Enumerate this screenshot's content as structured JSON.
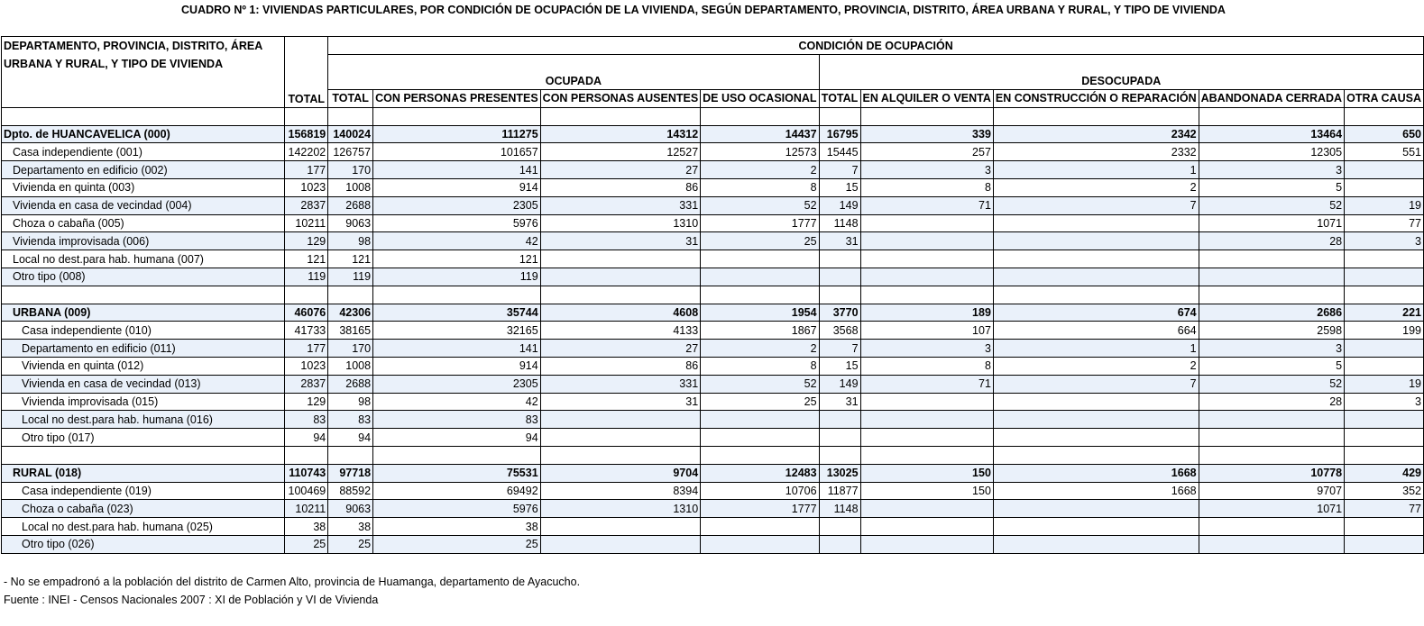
{
  "title": "CUADRO Nº 1: VIVIENDAS PARTICULARES, POR CONDICIÓN DE OCUPACIÓN DE LA VIVIENDA, SEGÚN DEPARTAMENTO, PROVINCIA, DISTRITO, ÁREA URBANA Y RURAL, Y TIPO DE VIVIENDA",
  "table": {
    "header": {
      "row_label": "DEPARTAMENTO, PROVINCIA, DISTRITO, ÁREA URBANA Y RURAL, Y TIPO DE VIVIENDA",
      "condition": "CONDICIÓN DE OCUPACIÓN",
      "occupied": "OCUPADA",
      "unoccupied": "DESOCUPADA",
      "columns": [
        "TOTAL",
        "TOTAL",
        "CON PERSONAS PRESENTES",
        "CON PERSONAS AUSENTES",
        "DE USO OCASIONAL",
        "TOTAL",
        "EN ALQUILER O VENTA",
        "EN CONSTRUCCIÓN O REPARACIÓN",
        "ABANDONADA CERRADA",
        "OTRA CAUSA"
      ]
    },
    "groups": [
      {
        "rows": [
          {
            "label": "Dpto. de HUANCAVELICA (000)",
            "values": [
              156819,
              140024,
              111275,
              14312,
              14437,
              16795,
              339,
              2342,
              13464,
              650
            ]
          },
          {
            "label": "Casa independiente (001)",
            "values": [
              142202,
              126757,
              101657,
              12527,
              12573,
              15445,
              257,
              2332,
              12305,
              551
            ]
          },
          {
            "label": "Departamento en edificio (002)",
            "values": [
              177,
              170,
              141,
              27,
              2,
              7,
              3,
              1,
              3,
              null
            ]
          },
          {
            "label": "Vivienda en quinta (003)",
            "values": [
              1023,
              1008,
              914,
              86,
              8,
              15,
              8,
              2,
              5,
              null
            ]
          },
          {
            "label": "Vivienda en casa de vecindad (004)",
            "values": [
              2837,
              2688,
              2305,
              331,
              52,
              149,
              71,
              7,
              52,
              19
            ]
          },
          {
            "label": "Choza o cabaña (005)",
            "values": [
              10211,
              9063,
              5976,
              1310,
              1777,
              1148,
              null,
              null,
              1071,
              77
            ]
          },
          {
            "label": "Vivienda improvisada (006)",
            "values": [
              129,
              98,
              42,
              31,
              25,
              31,
              null,
              null,
              28,
              3
            ]
          },
          {
            "label": "Local no dest.para hab. humana (007)",
            "values": [
              121,
              121,
              121,
              null,
              null,
              null,
              null,
              null,
              null,
              null
            ]
          },
          {
            "label": "Otro tipo (008)",
            "values": [
              119,
              119,
              119,
              null,
              null,
              null,
              null,
              null,
              null,
              null
            ]
          }
        ]
      },
      {
        "rows": [
          {
            "label": "URBANA (009)",
            "values": [
              46076,
              42306,
              35744,
              4608,
              1954,
              3770,
              189,
              674,
              2686,
              221
            ]
          },
          {
            "label": "Casa independiente (010)",
            "values": [
              41733,
              38165,
              32165,
              4133,
              1867,
              3568,
              107,
              664,
              2598,
              199
            ]
          },
          {
            "label": "Departamento en edificio (011)",
            "values": [
              177,
              170,
              141,
              27,
              2,
              7,
              3,
              1,
              3,
              null
            ]
          },
          {
            "label": "Vivienda en quinta (012)",
            "values": [
              1023,
              1008,
              914,
              86,
              8,
              15,
              8,
              2,
              5,
              null
            ]
          },
          {
            "label": "Vivienda en casa de vecindad (013)",
            "values": [
              2837,
              2688,
              2305,
              331,
              52,
              149,
              71,
              7,
              52,
              19
            ]
          },
          {
            "label": "Vivienda improvisada (015)",
            "values": [
              129,
              98,
              42,
              31,
              25,
              31,
              null,
              null,
              28,
              3
            ]
          },
          {
            "label": "Local no dest.para hab. humana (016)",
            "values": [
              83,
              83,
              83,
              null,
              null,
              null,
              null,
              null,
              null,
              null
            ]
          },
          {
            "label": "Otro tipo (017)",
            "values": [
              94,
              94,
              94,
              null,
              null,
              null,
              null,
              null,
              null,
              null
            ]
          }
        ]
      },
      {
        "rows": [
          {
            "label": "RURAL (018)",
            "values": [
              110743,
              97718,
              75531,
              9704,
              12483,
              13025,
              150,
              1668,
              10778,
              429
            ]
          },
          {
            "label": "Casa independiente (019)",
            "values": [
              100469,
              88592,
              69492,
              8394,
              10706,
              11877,
              150,
              1668,
              9707,
              352
            ]
          },
          {
            "label": "Choza o cabaña (023)",
            "values": [
              10211,
              9063,
              5976,
              1310,
              1777,
              1148,
              null,
              null,
              1071,
              77
            ]
          },
          {
            "label": "Local no dest.para hab. humana (025)",
            "values": [
              38,
              38,
              38,
              null,
              null,
              null,
              null,
              null,
              null,
              null
            ]
          },
          {
            "label": "Otro tipo (026)",
            "values": [
              25,
              25,
              25,
              null,
              null,
              null,
              null,
              null,
              null,
              null
            ]
          }
        ]
      }
    ]
  },
  "footnotes": [
    "- No se empadronó a la población del distrito de Carmen Alto, provincia de Huamanga, departamento de Ayacucho.",
    "Fuente : INEI - Censos Nacionales 2007 : XI de Población y VI de Vivienda"
  ]
}
